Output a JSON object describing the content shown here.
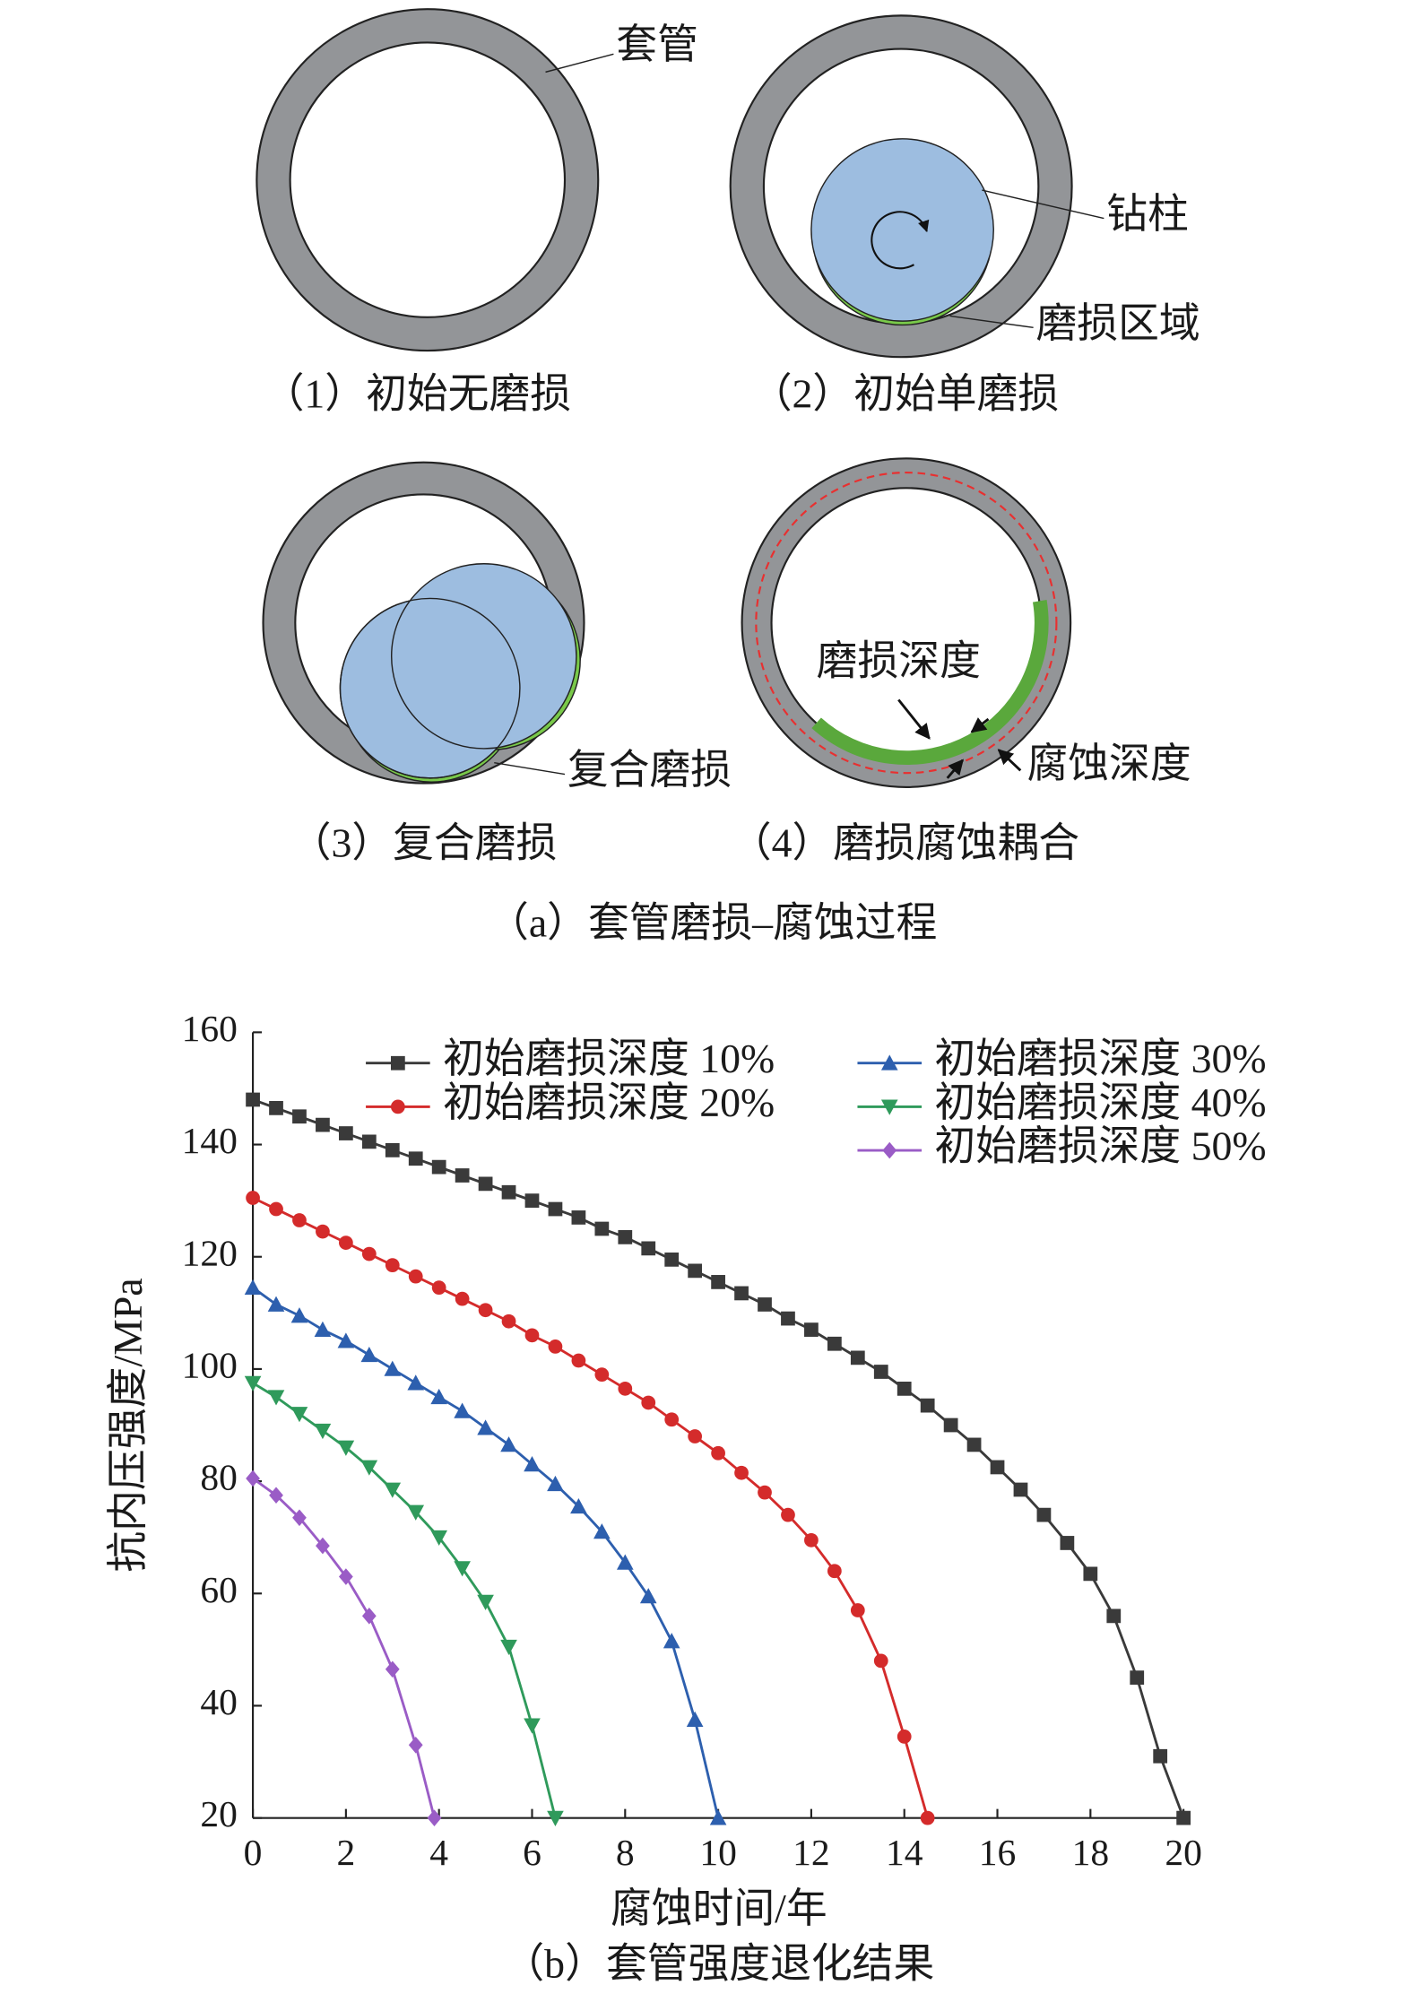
{
  "figure_a": {
    "caption": "（a）套管磨损–腐蚀过程",
    "panels": [
      {
        "caption": "（1）初始无磨损",
        "labels": [
          "套管"
        ]
      },
      {
        "caption": "（2）初始单磨损",
        "labels": [
          "钻柱",
          "磨损区域"
        ]
      },
      {
        "caption": "（3）复合磨损",
        "labels": [
          "复合磨损"
        ]
      },
      {
        "caption": "（4）磨损腐蚀耦合",
        "labels": [
          "磨损深度",
          "腐蚀深度"
        ]
      }
    ]
  },
  "chart_data": {
    "type": "line",
    "caption": "（b）套管强度退化结果",
    "x_label": "腐蚀时间/年",
    "y_label": "抗内压强度/MPa",
    "xlim": [
      0,
      20
    ],
    "ylim": [
      20,
      160
    ],
    "xticks": [
      0,
      2,
      4,
      6,
      8,
      10,
      12,
      14,
      16,
      18,
      20
    ],
    "yticks": [
      20,
      40,
      60,
      80,
      100,
      120,
      140,
      160
    ],
    "legend": "upper right",
    "series": [
      {
        "name": "初始磨损深度 10%",
        "color": "#3a3a3a",
        "marker": "square",
        "x": [
          0,
          0.5,
          1,
          1.5,
          2,
          2.5,
          3,
          3.5,
          4,
          4.5,
          5,
          5.5,
          6,
          6.5,
          7,
          7.5,
          8,
          8.5,
          9,
          9.5,
          10,
          10.5,
          11,
          11.5,
          12,
          12.5,
          13,
          13.5,
          14,
          14.5,
          15,
          15.5,
          16,
          16.5,
          17,
          17.5,
          18,
          18.5,
          19,
          19.5,
          20
        ],
        "values": [
          148,
          146.5,
          145,
          143.5,
          142,
          140.5,
          139,
          137.5,
          136,
          134.5,
          133,
          131.5,
          130,
          128.5,
          127,
          125,
          123.5,
          121.5,
          119.5,
          117.5,
          115.5,
          113.5,
          111.5,
          109,
          107,
          104.5,
          102,
          99.5,
          96.5,
          93.5,
          90,
          86.5,
          82.5,
          78.5,
          74,
          69,
          63.5,
          56,
          45,
          31,
          20
        ]
      },
      {
        "name": "初始磨损深度 20%",
        "color": "#d42b2b",
        "marker": "circle",
        "x": [
          0,
          0.5,
          1,
          1.5,
          2,
          2.5,
          3,
          3.5,
          4,
          4.5,
          5,
          5.5,
          6,
          6.5,
          7,
          7.5,
          8,
          8.5,
          9,
          9.5,
          10,
          10.5,
          11,
          11.5,
          12,
          12.5,
          13,
          13.5,
          14,
          14.5
        ],
        "values": [
          130.5,
          128.5,
          126.5,
          124.5,
          122.5,
          120.5,
          118.5,
          116.5,
          114.5,
          112.5,
          110.5,
          108.5,
          106,
          104,
          101.5,
          99,
          96.5,
          94,
          91,
          88,
          85,
          81.5,
          78,
          74,
          69.5,
          64,
          57,
          48,
          34.5,
          20
        ]
      },
      {
        "name": "初始磨损深度 30%",
        "color": "#2d5fae",
        "marker": "triangle-up",
        "x": [
          0,
          0.5,
          1,
          1.5,
          2,
          2.5,
          3,
          3.5,
          4,
          4.5,
          5,
          5.5,
          6,
          6.5,
          7,
          7.5,
          8,
          8.5,
          9,
          9.5,
          10
        ],
        "values": [
          114.5,
          111.5,
          109.5,
          107,
          105,
          102.5,
          100,
          97.5,
          95,
          92.5,
          89.5,
          86.5,
          83,
          79.5,
          75.5,
          71,
          65.5,
          59.5,
          51.5,
          37.5,
          20
        ]
      },
      {
        "name": "初始磨损深度 40%",
        "color": "#2f9a5b",
        "marker": "triangle-down",
        "x": [
          0,
          0.5,
          1,
          1.5,
          2,
          2.5,
          3,
          3.5,
          4,
          4.5,
          5,
          5.5,
          6,
          6.5
        ],
        "values": [
          97.5,
          95,
          92,
          89,
          86,
          82.5,
          78.5,
          74.5,
          70,
          64.5,
          58.5,
          50.5,
          36.5,
          20
        ]
      },
      {
        "name": "初始磨损深度 50%",
        "color": "#9a5cc6",
        "marker": "diamond",
        "x": [
          0,
          0.5,
          1,
          1.5,
          2,
          2.5,
          3,
          3.5,
          3.9
        ],
        "values": [
          80.5,
          77.5,
          73.5,
          68.5,
          63,
          56,
          46.5,
          33,
          20
        ]
      }
    ]
  }
}
